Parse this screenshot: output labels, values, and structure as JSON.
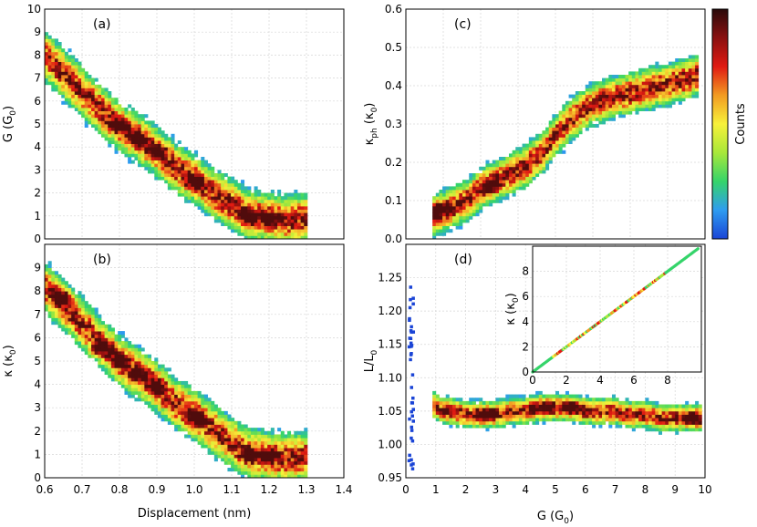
{
  "figure": {
    "colorbar_label": "Counts",
    "colormap": [
      "#1a44d6",
      "#2e9cf0",
      "#35d46a",
      "#a8e83a",
      "#f7f13a",
      "#f29b22",
      "#e01a12",
      "#8a1010",
      "#2a0a0a"
    ]
  },
  "chart_data": [
    {
      "id": "a",
      "type": "heatmap",
      "panel_label": "(a)",
      "xlabel": "",
      "ylabel": "G (G₀)",
      "ylabel_main": "G (G",
      "ylabel_sub": "0",
      "ylabel_end": ")",
      "xlim": [
        0.6,
        1.4
      ],
      "ylim": [
        0,
        10
      ],
      "xticks": [],
      "yticks": [
        0,
        1,
        2,
        3,
        4,
        5,
        6,
        7,
        8,
        9,
        10
      ],
      "grid": true,
      "ridge": [
        [
          0.6,
          8.0
        ],
        [
          0.65,
          7.2
        ],
        [
          0.7,
          6.4
        ],
        [
          0.75,
          5.6
        ],
        [
          0.8,
          4.9
        ],
        [
          0.85,
          4.4
        ],
        [
          0.9,
          3.8
        ],
        [
          0.95,
          3.1
        ],
        [
          1.0,
          2.6
        ],
        [
          1.05,
          2.0
        ],
        [
          1.1,
          1.5
        ],
        [
          1.15,
          1.0
        ],
        [
          1.2,
          0.9
        ],
        [
          1.25,
          0.8
        ],
        [
          1.3,
          0.9
        ]
      ],
      "hotspots": [
        [
          0.8,
          5.0
        ],
        [
          0.85,
          4.3
        ],
        [
          0.9,
          3.8
        ],
        [
          1.0,
          2.5
        ],
        [
          1.15,
          0.95
        ],
        [
          1.2,
          0.9
        ]
      ]
    },
    {
      "id": "b",
      "type": "heatmap",
      "panel_label": "(b)",
      "xlabel": "Displacement (nm)",
      "ylabel": "κ (κ₀)",
      "ylabel_main": "κ (κ",
      "ylabel_sub": "0",
      "ylabel_end": ")",
      "xlim": [
        0.6,
        1.4
      ],
      "ylim": [
        0,
        10
      ],
      "xticks": [
        0.6,
        0.7,
        0.8,
        0.9,
        1.0,
        1.1,
        1.2,
        1.3,
        1.4
      ],
      "xtick_labels": [
        "0.6",
        "0.7",
        "0.8",
        "0.9",
        "1.0",
        "1.1",
        "1.2",
        "1.3",
        "1.4"
      ],
      "yticks": [
        0,
        1,
        2,
        3,
        4,
        5,
        6,
        7,
        8,
        9
      ],
      "grid": true,
      "ridge": [
        [
          0.6,
          8.2
        ],
        [
          0.65,
          7.4
        ],
        [
          0.7,
          6.6
        ],
        [
          0.75,
          5.8
        ],
        [
          0.8,
          5.0
        ],
        [
          0.85,
          4.5
        ],
        [
          0.9,
          3.9
        ],
        [
          0.95,
          3.2
        ],
        [
          1.0,
          2.7
        ],
        [
          1.05,
          2.1
        ],
        [
          1.1,
          1.5
        ],
        [
          1.15,
          1.0
        ],
        [
          1.2,
          0.9
        ],
        [
          1.25,
          0.85
        ],
        [
          1.3,
          0.9
        ]
      ],
      "hotspots": [
        [
          0.65,
          7.8
        ],
        [
          0.75,
          5.5
        ],
        [
          0.8,
          5.0
        ],
        [
          0.85,
          4.4
        ],
        [
          0.9,
          3.9
        ],
        [
          1.0,
          2.6
        ],
        [
          1.15,
          1.0
        ],
        [
          1.2,
          0.95
        ]
      ]
    },
    {
      "id": "c",
      "type": "heatmap",
      "panel_label": "(c)",
      "xlabel": "",
      "ylabel_main": "κ",
      "ylabel_sub1": "ph",
      "ylabel_mid": " (κ",
      "ylabel_sub": "0",
      "ylabel_end": ")",
      "xlim": [
        0,
        10
      ],
      "ylim": [
        0,
        0.6
      ],
      "xticks": [],
      "yticks": [
        0,
        0.1,
        0.2,
        0.3,
        0.4,
        0.5,
        0.6
      ],
      "ytick_labels": [
        "0.0",
        "0.1",
        "0.2",
        "0.3",
        "0.4",
        "0.5",
        "0.6"
      ],
      "grid": true,
      "ridge": [
        [
          0.9,
          0.06
        ],
        [
          1.5,
          0.08
        ],
        [
          2.0,
          0.1
        ],
        [
          2.5,
          0.13
        ],
        [
          3.0,
          0.15
        ],
        [
          3.5,
          0.17
        ],
        [
          4.0,
          0.19
        ],
        [
          4.5,
          0.22
        ],
        [
          5.0,
          0.27
        ],
        [
          5.5,
          0.31
        ],
        [
          6.0,
          0.34
        ],
        [
          6.5,
          0.36
        ],
        [
          7.0,
          0.37
        ],
        [
          7.5,
          0.38
        ],
        [
          8.0,
          0.39
        ],
        [
          8.5,
          0.4
        ],
        [
          9.0,
          0.41
        ],
        [
          9.5,
          0.42
        ],
        [
          9.8,
          0.43
        ]
      ],
      "hotspots": [
        [
          1.0,
          0.07
        ],
        [
          2.8,
          0.14
        ],
        [
          1.2,
          0.08
        ]
      ]
    },
    {
      "id": "d",
      "type": "heatmap",
      "panel_label": "(d)",
      "xlabel": "G (G₀)",
      "xlabel_main": "G (G",
      "xlabel_sub": "0",
      "xlabel_end": ")",
      "ylabel_main": "L/L",
      "ylabel_sub": "0",
      "ylabel_end": "",
      "xlim": [
        0,
        10
      ],
      "ylim": [
        0.95,
        1.3
      ],
      "xticks": [
        0,
        1,
        2,
        3,
        4,
        5,
        6,
        7,
        8,
        9,
        10
      ],
      "yticks": [
        0.95,
        1.0,
        1.05,
        1.1,
        1.15,
        1.2,
        1.25
      ],
      "ytick_labels": [
        "0.95",
        "1.00",
        "1.05",
        "1.10",
        "1.15",
        "1.20",
        "1.25"
      ],
      "grid": true,
      "ridge": [
        [
          0.9,
          1.06
        ],
        [
          1.2,
          1.05
        ],
        [
          1.5,
          1.05
        ],
        [
          2,
          1.045
        ],
        [
          2.5,
          1.045
        ],
        [
          3,
          1.045
        ],
        [
          3.5,
          1.05
        ],
        [
          4,
          1.05
        ],
        [
          4.5,
          1.055
        ],
        [
          5,
          1.055
        ],
        [
          5.5,
          1.055
        ],
        [
          6,
          1.05
        ],
        [
          6.5,
          1.05
        ],
        [
          7,
          1.05
        ],
        [
          7.5,
          1.045
        ],
        [
          8,
          1.045
        ],
        [
          8.5,
          1.04
        ],
        [
          9,
          1.04
        ],
        [
          9.5,
          1.04
        ],
        [
          9.9,
          1.04
        ]
      ],
      "hotspots": [
        [
          2.7,
          1.045
        ],
        [
          4.7,
          1.055
        ],
        [
          5.5,
          1.055
        ],
        [
          9.6,
          1.04
        ]
      ]
    },
    {
      "id": "d-inset",
      "type": "scatter",
      "ylabel_main": "κ (κ",
      "ylabel_sub": "0",
      "ylabel_end": ")",
      "xlim": [
        0,
        10
      ],
      "ylim": [
        0,
        10
      ],
      "xticks": [
        0,
        2,
        4,
        6,
        8
      ],
      "yticks": [
        0,
        2,
        4,
        6,
        8
      ],
      "grid": true,
      "line": [
        [
          0,
          0
        ],
        [
          9.8,
          9.8
        ]
      ]
    }
  ]
}
